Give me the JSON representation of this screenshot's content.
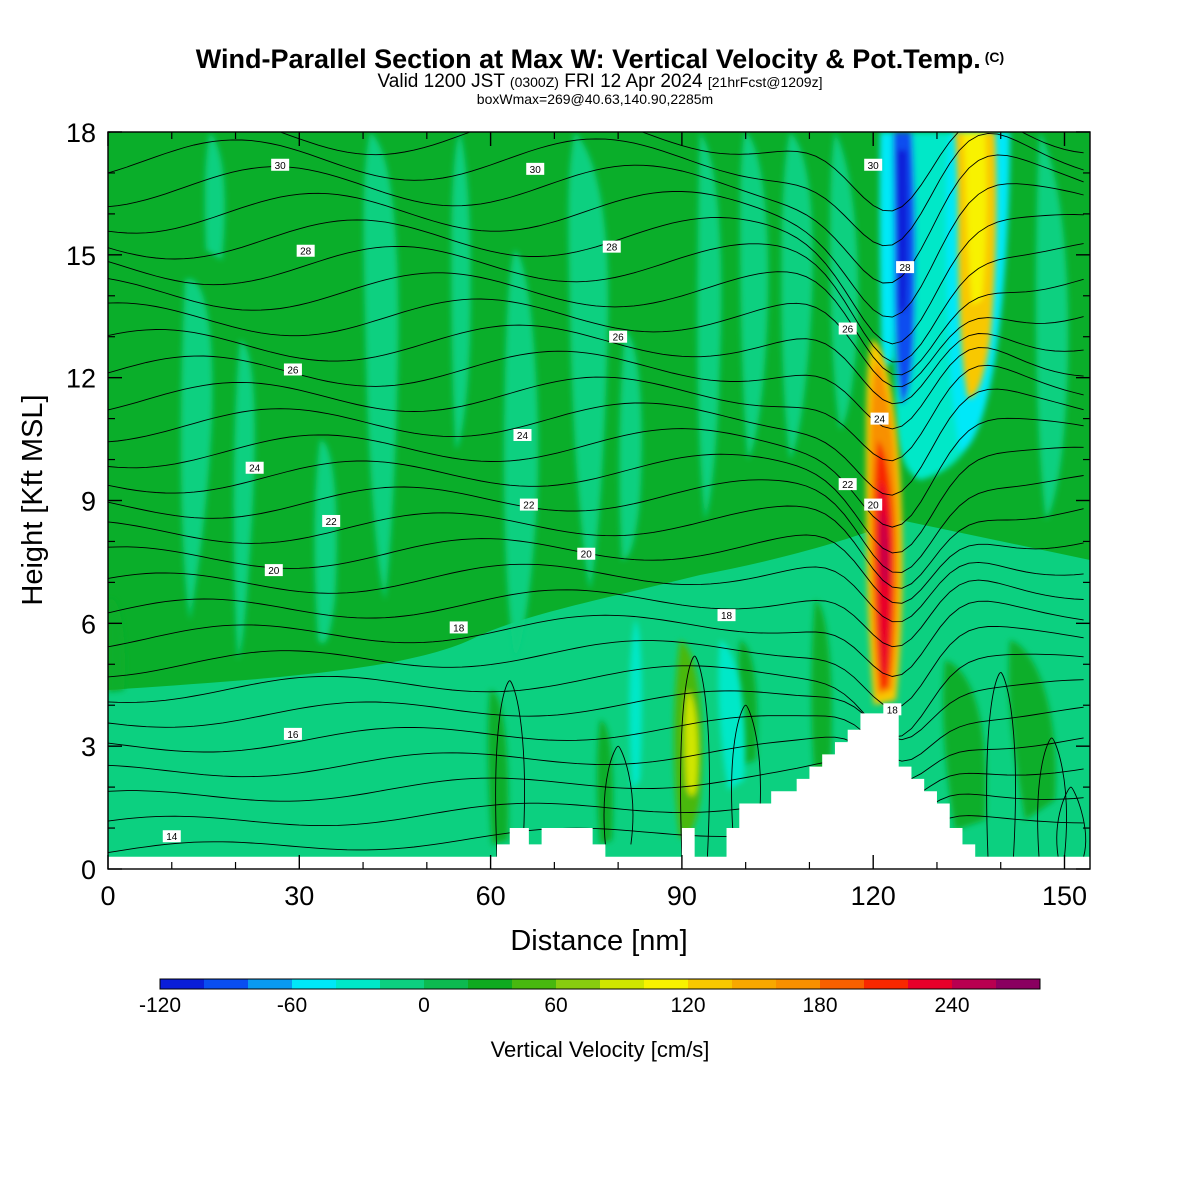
{
  "header": {
    "title": "Wind-Parallel Section at Max W: Vertical Velocity & Pot.Temp.",
    "copyright": "(C)",
    "valid_prefix": "Valid 1200 JST",
    "valid_utc": "(0300Z)",
    "valid_date": "FRI 12 Apr 2024",
    "forecast_info": "[21hrFcst@1209z]",
    "box_info": "boxWmax=269@40.63,140.90,2285m"
  },
  "colors": {
    "background_field": "#0cc25e",
    "strong_field": "#0aae2a",
    "terrain": "#ffffff",
    "contour": "#000000"
  },
  "chart_data": {
    "type": "heatmap",
    "title": "Wind-Parallel Section at Max W: Vertical Velocity & Pot.Temp.",
    "xlabel": "Distance [nm]",
    "ylabel": "Height [Kft MSL]",
    "xlim": [
      0,
      154
    ],
    "ylim": [
      0,
      18
    ],
    "x_ticks": [
      "0",
      "30",
      "60",
      "90",
      "120",
      "150"
    ],
    "x_tick_values": [
      0,
      30,
      60,
      90,
      120,
      150
    ],
    "y_ticks": [
      "0",
      "3",
      "6",
      "9",
      "12",
      "15",
      "18"
    ],
    "y_tick_values": [
      0,
      3,
      6,
      9,
      12,
      15,
      18
    ],
    "colorbar": {
      "title": "Vertical Velocity [cm/s]",
      "tick_labels": [
        "-120",
        "-60",
        "0",
        "60",
        "120",
        "180",
        "240"
      ],
      "tick_values": [
        -120,
        -60,
        0,
        60,
        120,
        180,
        240
      ],
      "range": [
        -120,
        280
      ],
      "step": 20,
      "colors": [
        "#0a1ed8",
        "#0a4ef0",
        "#0a9af0",
        "#00e8f8",
        "#00e8c8",
        "#0cd080",
        "#0cba50",
        "#10aa20",
        "#48b810",
        "#88cc10",
        "#d0e600",
        "#f8f200",
        "#f8c800",
        "#f8a800",
        "#f89000",
        "#f86000",
        "#f82800",
        "#e8002a",
        "#b80050",
        "#8a0060",
        "#5a0090"
      ]
    },
    "field_features": [
      {
        "name": "updraft core",
        "x": 122.5,
        "y_range": [
          4.3,
          11.5
        ],
        "w_max": 269
      },
      {
        "name": "downdraft",
        "x": 125,
        "y_range": [
          10,
          18
        ],
        "w_min": -110
      },
      {
        "name": "secondary updraft",
        "x": 136.5,
        "y_range": [
          11,
          18
        ],
        "w_max": 110
      },
      {
        "name": "weak updraft",
        "x": 91.5,
        "y_range": [
          2,
          5
        ],
        "w_max": 70
      }
    ],
    "terrain_profile": {
      "x": [
        0,
        60,
        61,
        63,
        66,
        68,
        71,
        76,
        78,
        90,
        92,
        97,
        99,
        104,
        108,
        110,
        112,
        114,
        116,
        118,
        120,
        124,
        126,
        128,
        130,
        132,
        134,
        136,
        138,
        140,
        154
      ],
      "height": [
        0.3,
        0.3,
        0.6,
        1.0,
        0.6,
        1.0,
        1.0,
        0.6,
        0.3,
        1.0,
        0.3,
        1.0,
        1.6,
        1.9,
        2.2,
        2.5,
        2.8,
        3.1,
        3.4,
        3.8,
        3.8,
        2.5,
        2.2,
        1.9,
        1.6,
        1.0,
        0.6,
        0.3,
        0.3,
        0.3,
        0.3
      ]
    },
    "theta_contours": {
      "labels": [
        {
          "text": "30",
          "x": 27,
          "y": 17.2
        },
        {
          "text": "30",
          "x": 67,
          "y": 17.1
        },
        {
          "text": "30",
          "x": 120,
          "y": 17.2
        },
        {
          "text": "28",
          "x": 31,
          "y": 15.1
        },
        {
          "text": "28",
          "x": 79,
          "y": 15.2
        },
        {
          "text": "28",
          "x": 125,
          "y": 14.7
        },
        {
          "text": "26",
          "x": 29,
          "y": 12.2
        },
        {
          "text": "26",
          "x": 80,
          "y": 13.0
        },
        {
          "text": "26",
          "x": 116,
          "y": 13.2
        },
        {
          "text": "24",
          "x": 23,
          "y": 9.8
        },
        {
          "text": "24",
          "x": 65,
          "y": 10.6
        },
        {
          "text": "24",
          "x": 121,
          "y": 11.0
        },
        {
          "text": "22",
          "x": 35,
          "y": 8.5
        },
        {
          "text": "22",
          "x": 66,
          "y": 8.9
        },
        {
          "text": "22",
          "x": 116,
          "y": 9.4
        },
        {
          "text": "20",
          "x": 26,
          "y": 7.3
        },
        {
          "text": "20",
          "x": 75,
          "y": 7.7
        },
        {
          "text": "20",
          "x": 120,
          "y": 8.9
        },
        {
          "text": "18",
          "x": 55,
          "y": 5.9
        },
        {
          "text": "18",
          "x": 97,
          "y": 6.2
        },
        {
          "text": "18",
          "x": 123,
          "y": 3.9
        },
        {
          "text": "16",
          "x": 29,
          "y": 3.3
        },
        {
          "text": "14",
          "x": 10,
          "y": 0.8
        }
      ]
    }
  }
}
